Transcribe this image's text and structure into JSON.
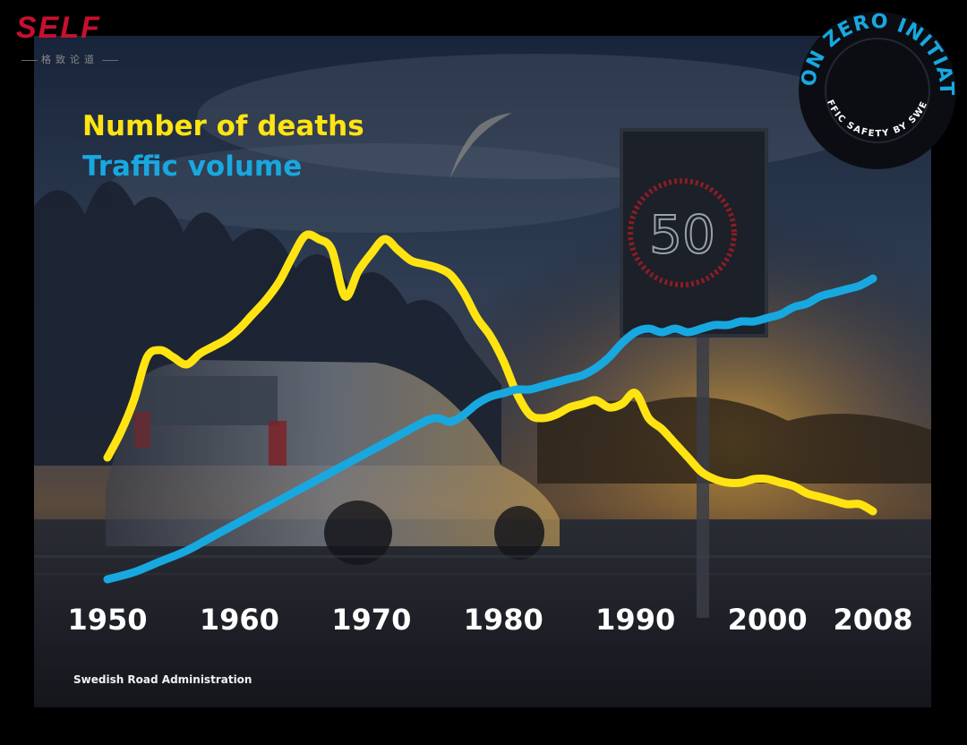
{
  "brand": {
    "name": "SELF",
    "tagline": "格致论道"
  },
  "badge": {
    "line_one": "VISION ZERO INITIATIVE",
    "line_two": "TRAFFIC SAFETY BY SWEDEN"
  },
  "sign": {
    "speed_limit": "50"
  },
  "source": "Swedish Road Administration",
  "colors": {
    "deaths": "#ffe411",
    "traffic": "#18a8e0",
    "brand": "#c8102e"
  },
  "chart_data": {
    "type": "line",
    "title": "",
    "xlabel": "",
    "ylabel": "",
    "xlim": [
      1950,
      2008
    ],
    "ylim": [
      0,
      100
    ],
    "y_axis_labels": "none (relative index, values estimated)",
    "x_tick_labels": [
      "1950",
      "1960",
      "1970",
      "1980",
      "1990",
      "2000",
      "2008"
    ],
    "x_ticks": [
      1950,
      1960,
      1970,
      1980,
      1990,
      2000,
      2008
    ],
    "series": [
      {
        "name": "Number of deaths",
        "color": "#ffe411",
        "points": [
          [
            1950,
            36
          ],
          [
            1951,
            43
          ],
          [
            1952,
            52
          ],
          [
            1953,
            64
          ],
          [
            1954,
            66
          ],
          [
            1955,
            64
          ],
          [
            1956,
            62
          ],
          [
            1957,
            65
          ],
          [
            1958,
            67
          ],
          [
            1959,
            69
          ],
          [
            1960,
            72
          ],
          [
            1961,
            76
          ],
          [
            1962,
            80
          ],
          [
            1963,
            85
          ],
          [
            1964,
            92
          ],
          [
            1965,
            98
          ],
          [
            1966,
            97
          ],
          [
            1967,
            94
          ],
          [
            1968,
            81
          ],
          [
            1969,
            88
          ],
          [
            1970,
            93
          ],
          [
            1971,
            97
          ],
          [
            1972,
            94
          ],
          [
            1973,
            91
          ],
          [
            1974,
            90
          ],
          [
            1975,
            89
          ],
          [
            1976,
            87
          ],
          [
            1977,
            82
          ],
          [
            1978,
            75
          ],
          [
            1979,
            70
          ],
          [
            1980,
            63
          ],
          [
            1981,
            54
          ],
          [
            1982,
            48
          ],
          [
            1983,
            47
          ],
          [
            1984,
            48
          ],
          [
            1985,
            50
          ],
          [
            1986,
            51
          ],
          [
            1987,
            52
          ],
          [
            1988,
            50
          ],
          [
            1989,
            51
          ],
          [
            1990,
            54
          ],
          [
            1991,
            47
          ],
          [
            1992,
            44
          ],
          [
            1993,
            40
          ],
          [
            1994,
            36
          ],
          [
            1995,
            32
          ],
          [
            1996,
            30
          ],
          [
            1997,
            29
          ],
          [
            1998,
            29
          ],
          [
            1999,
            30
          ],
          [
            2000,
            30
          ],
          [
            2001,
            29
          ],
          [
            2002,
            28
          ],
          [
            2003,
            26
          ],
          [
            2004,
            25
          ],
          [
            2005,
            24
          ],
          [
            2006,
            23
          ],
          [
            2007,
            23
          ],
          [
            2008,
            21
          ]
        ]
      },
      {
        "name": "Traffic volume",
        "color": "#18a8e0",
        "points": [
          [
            1950,
            2
          ],
          [
            1952,
            4
          ],
          [
            1954,
            7
          ],
          [
            1956,
            10
          ],
          [
            1958,
            14
          ],
          [
            1960,
            18
          ],
          [
            1962,
            22
          ],
          [
            1964,
            26
          ],
          [
            1966,
            30
          ],
          [
            1968,
            34
          ],
          [
            1970,
            38
          ],
          [
            1972,
            42
          ],
          [
            1974,
            46
          ],
          [
            1975,
            47
          ],
          [
            1976,
            46
          ],
          [
            1977,
            48
          ],
          [
            1978,
            51
          ],
          [
            1979,
            53
          ],
          [
            1980,
            54
          ],
          [
            1981,
            55
          ],
          [
            1982,
            55
          ],
          [
            1983,
            56
          ],
          [
            1984,
            57
          ],
          [
            1985,
            58
          ],
          [
            1986,
            59
          ],
          [
            1987,
            61
          ],
          [
            1988,
            64
          ],
          [
            1989,
            68
          ],
          [
            1990,
            71
          ],
          [
            1991,
            72
          ],
          [
            1992,
            71
          ],
          [
            1993,
            72
          ],
          [
            1994,
            71
          ],
          [
            1995,
            72
          ],
          [
            1996,
            73
          ],
          [
            1997,
            73
          ],
          [
            1998,
            74
          ],
          [
            1999,
            74
          ],
          [
            2000,
            75
          ],
          [
            2001,
            76
          ],
          [
            2002,
            78
          ],
          [
            2003,
            79
          ],
          [
            2004,
            81
          ],
          [
            2005,
            82
          ],
          [
            2006,
            83
          ],
          [
            2007,
            84
          ],
          [
            2008,
            86
          ]
        ]
      }
    ]
  }
}
